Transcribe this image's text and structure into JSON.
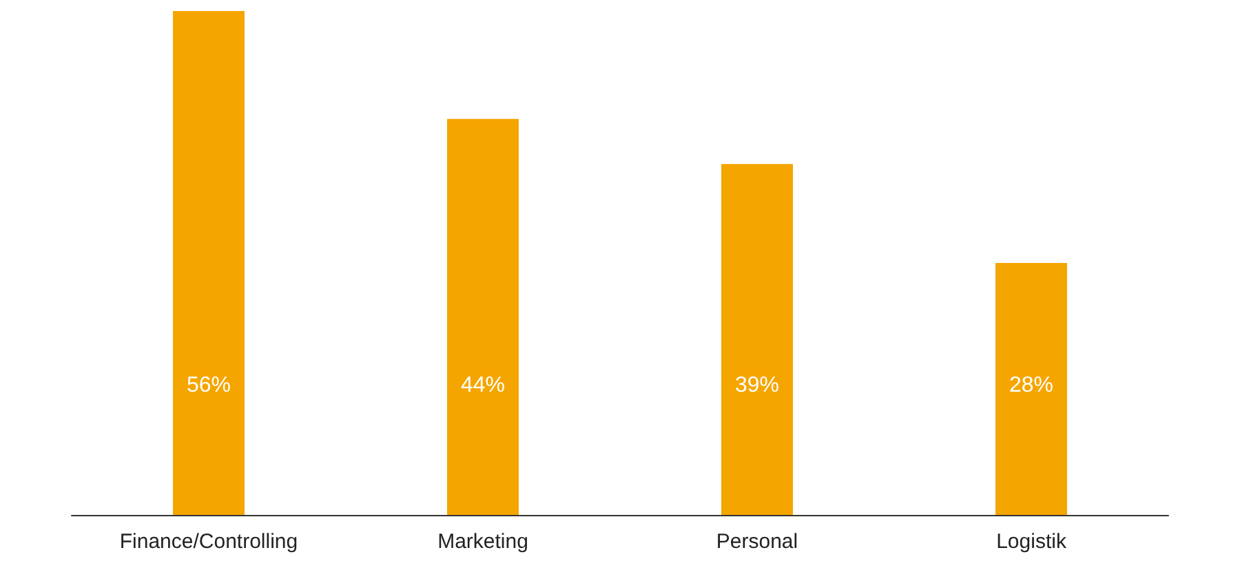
{
  "chart_data": {
    "type": "bar",
    "categories": [
      "Finance/Controlling",
      "Marketing",
      "Personal",
      "Logistik"
    ],
    "values": [
      56,
      44,
      39,
      28
    ],
    "color": "#f5a500",
    "value_labels": [
      "56%",
      "44%",
      "39%",
      "28%"
    ]
  }
}
